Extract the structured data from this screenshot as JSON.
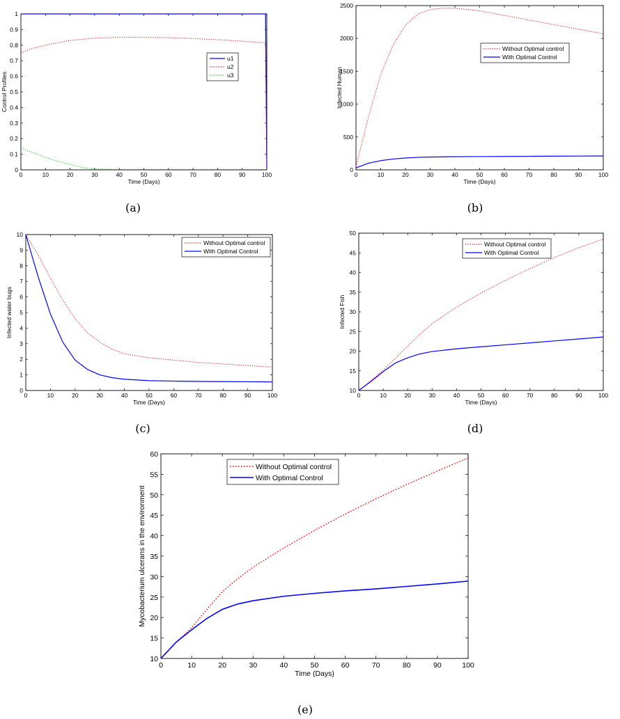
{
  "chart_data": [
    {
      "type": "line",
      "caption": "(a)",
      "xlabel": "Time (Days)",
      "ylabel": "Control Profiles",
      "xlim": [
        0,
        100
      ],
      "ylim": [
        0,
        1
      ],
      "xticks": [
        0,
        10,
        20,
        30,
        40,
        50,
        60,
        70,
        80,
        90,
        100
      ],
      "yticks": [
        0,
        0.1,
        0.2,
        0.3,
        0.4,
        0.5,
        0.6,
        0.7,
        0.8,
        0.9,
        1
      ],
      "legend_position": "upper-right",
      "series": [
        {
          "name": "u1",
          "color": "#0000ff",
          "style": "solid",
          "x": [
            0,
            10,
            20,
            30,
            40,
            50,
            60,
            70,
            80,
            90,
            99.5,
            100
          ],
          "y": [
            1,
            1,
            1,
            1,
            1,
            1,
            1,
            1,
            1,
            1,
            1,
            0
          ]
        },
        {
          "name": "u2",
          "color": "#ff0000",
          "style": "dotted",
          "x": [
            0,
            5,
            10,
            20,
            30,
            40,
            50,
            60,
            70,
            80,
            90,
            99.5,
            100
          ],
          "y": [
            0.75,
            0.78,
            0.8,
            0.83,
            0.845,
            0.85,
            0.85,
            0.848,
            0.842,
            0.835,
            0.825,
            0.815,
            0
          ]
        },
        {
          "name": "u3",
          "color": "#00cc00",
          "style": "dotted",
          "x": [
            0,
            5,
            10,
            15,
            20,
            25,
            30,
            40,
            50,
            60,
            70,
            80,
            90,
            100
          ],
          "y": [
            0.14,
            0.11,
            0.08,
            0.055,
            0.035,
            0.015,
            0.005,
            0.003,
            0.003,
            0.003,
            0.003,
            0.003,
            0.003,
            0.003
          ]
        }
      ]
    },
    {
      "type": "line",
      "caption": "(b)",
      "xlabel": "Time (Days)",
      "ylabel": "Infected Human",
      "xlim": [
        0,
        100
      ],
      "ylim": [
        0,
        2500
      ],
      "xticks": [
        0,
        10,
        20,
        30,
        40,
        50,
        60,
        70,
        80,
        90,
        100
      ],
      "yticks": [
        0,
        500,
        1000,
        1500,
        2000,
        2500
      ],
      "legend_position": "upper-right",
      "series": [
        {
          "name": "Without Optimal control",
          "color": "#ff0000",
          "style": "dotted",
          "x": [
            0,
            5,
            10,
            15,
            20,
            25,
            30,
            35,
            40,
            50,
            60,
            70,
            80,
            90,
            100
          ],
          "y": [
            50,
            800,
            1450,
            1900,
            2200,
            2370,
            2440,
            2460,
            2460,
            2420,
            2350,
            2280,
            2210,
            2140,
            2070
          ]
        },
        {
          "name": "With Optimal Control",
          "color": "#0000ff",
          "style": "solid",
          "x": [
            0,
            5,
            10,
            15,
            20,
            25,
            30,
            40,
            50,
            60,
            70,
            80,
            90,
            100
          ],
          "y": [
            30,
            100,
            140,
            165,
            180,
            190,
            195,
            200,
            202,
            204,
            206,
            208,
            210,
            212
          ]
        }
      ]
    },
    {
      "type": "line",
      "caption": "(c)",
      "xlabel": "Time (Days)",
      "ylabel": "Infected water bugs",
      "xlim": [
        0,
        100
      ],
      "ylim": [
        0,
        10
      ],
      "xticks": [
        0,
        10,
        20,
        30,
        40,
        50,
        60,
        70,
        80,
        90,
        100
      ],
      "yticks": [
        0,
        1,
        2,
        3,
        4,
        5,
        6,
        7,
        8,
        9,
        10
      ],
      "legend_position": "top-right",
      "series": [
        {
          "name": "Without Optimal control",
          "color": "#ff0000",
          "style": "dotted",
          "x": [
            0,
            5,
            10,
            15,
            20,
            25,
            30,
            35,
            40,
            50,
            60,
            70,
            80,
            90,
            100
          ],
          "y": [
            10,
            8.7,
            7.2,
            5.8,
            4.6,
            3.7,
            3.1,
            2.65,
            2.35,
            2.1,
            1.95,
            1.8,
            1.7,
            1.6,
            1.5
          ]
        },
        {
          "name": "With Optimal Control",
          "color": "#0000ff",
          "style": "solid",
          "x": [
            0,
            5,
            10,
            15,
            20,
            25,
            30,
            35,
            40,
            50,
            60,
            70,
            80,
            90,
            100
          ],
          "y": [
            10,
            7.3,
            4.9,
            3.1,
            1.95,
            1.35,
            1.0,
            0.82,
            0.72,
            0.63,
            0.6,
            0.58,
            0.57,
            0.56,
            0.55
          ]
        }
      ]
    },
    {
      "type": "line",
      "caption": "(d)",
      "xlabel": "Time (Days)",
      "ylabel": "Infected Fish",
      "xlim": [
        0,
        100
      ],
      "ylim": [
        10,
        50
      ],
      "xticks": [
        0,
        10,
        20,
        30,
        40,
        50,
        60,
        70,
        80,
        90,
        100
      ],
      "yticks": [
        10,
        15,
        20,
        25,
        30,
        35,
        40,
        45,
        50
      ],
      "legend_position": "top-right",
      "series": [
        {
          "name": "Without Optimal control",
          "color": "#ff0000",
          "style": "dotted",
          "x": [
            0,
            5,
            10,
            15,
            20,
            25,
            30,
            40,
            50,
            60,
            70,
            80,
            90,
            100
          ],
          "y": [
            10,
            12.5,
            15.2,
            18.2,
            21.3,
            24.3,
            27,
            31.2,
            34.8,
            38,
            41,
            43.8,
            46.3,
            48.5
          ]
        },
        {
          "name": "With Optimal Control",
          "color": "#0000ff",
          "style": "solid",
          "x": [
            0,
            5,
            10,
            15,
            20,
            25,
            30,
            40,
            50,
            60,
            70,
            80,
            90,
            100
          ],
          "y": [
            10,
            12.3,
            14.8,
            17,
            18.3,
            19.3,
            19.9,
            20.6,
            21.1,
            21.6,
            22.1,
            22.6,
            23.1,
            23.6
          ]
        }
      ]
    },
    {
      "type": "line",
      "caption": "(e)",
      "xlabel": "Time (Days)",
      "ylabel": "Mycobacterium ulcerans in the environment",
      "xlim": [
        0,
        100
      ],
      "ylim": [
        10,
        60
      ],
      "xticks": [
        0,
        10,
        20,
        30,
        40,
        50,
        60,
        70,
        80,
        90,
        100
      ],
      "yticks": [
        10,
        15,
        20,
        25,
        30,
        35,
        40,
        45,
        50,
        55,
        60
      ],
      "legend_position": "top-center",
      "series": [
        {
          "name": "Without Optimal control",
          "color": "#ff0000",
          "style": "dotted",
          "x": [
            0,
            5,
            10,
            15,
            20,
            25,
            30,
            40,
            50,
            60,
            70,
            80,
            90,
            100
          ],
          "y": [
            10,
            14,
            17.5,
            22,
            26.3,
            29.5,
            32.3,
            37,
            41.3,
            45.3,
            49,
            52.5,
            55.8,
            59
          ]
        },
        {
          "name": "With Optimal Control",
          "color": "#0000ff",
          "style": "solid",
          "x": [
            0,
            5,
            10,
            15,
            20,
            25,
            30,
            40,
            50,
            60,
            70,
            80,
            90,
            100
          ],
          "y": [
            10,
            14,
            17,
            19.8,
            22,
            23.3,
            24.1,
            25.2,
            25.9,
            26.5,
            27,
            27.6,
            28.2,
            28.9
          ]
        }
      ]
    }
  ]
}
